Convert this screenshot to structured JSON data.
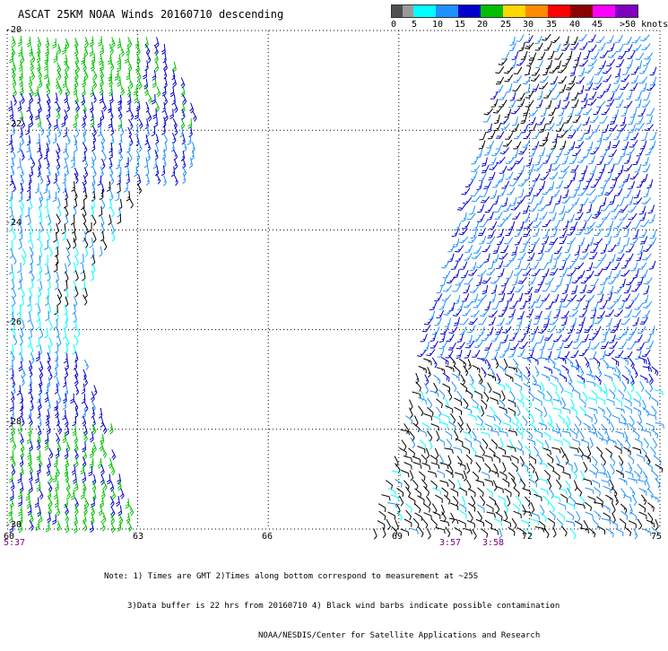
{
  "title": "ASCAT 25KM NOAA Winds 20160710 descending",
  "legend": {
    "labels": [
      "0",
      "5",
      "10",
      "15",
      "20",
      "25",
      "30",
      "35",
      "40",
      "45",
      ">50 knots"
    ],
    "colors": [
      "#505050",
      "#9a9a9a",
      "#00ffff",
      "#1e90ff",
      "#0000cc",
      "#00c000",
      "#ffd700",
      "#ff8c00",
      "#ff0000",
      "#8b0000",
      "#ff00ff",
      "#8000c0"
    ],
    "label_values": [
      0,
      5,
      10,
      15,
      20,
      25,
      30,
      35,
      40,
      45,
      50
    ]
  },
  "map": {
    "lat_labels": [
      "-20",
      "-22",
      "-24",
      "-26",
      "-28",
      "-30"
    ],
    "lon_labels": [
      "60",
      "63",
      "66",
      "69",
      "72",
      "75"
    ],
    "lat_range": [
      -30,
      -20
    ],
    "lon_range": [
      60,
      75
    ],
    "grid": "dotted"
  },
  "times": [
    {
      "text": "5:37",
      "lon": 60
    },
    {
      "text": "3:57",
      "lon": 70.2
    },
    {
      "text": "3:58",
      "lon": 71.2
    }
  ],
  "notes": {
    "line1": "Note: 1) Times are GMT 2)Times along bottom correspond to measurement at ~25S",
    "line2": "3)Data buffer is 22 hrs from 20160710 4) Black wind barbs indicate possible contamination",
    "line3": "NOAA/NESDIS/Center for Satellite Applications and Research"
  }
}
